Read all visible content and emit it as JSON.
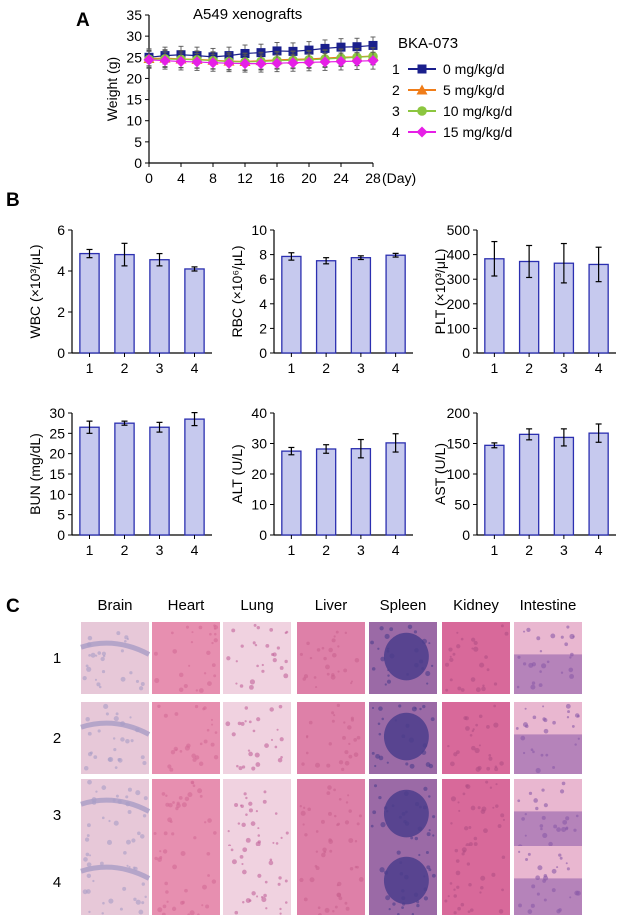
{
  "figure": {
    "panels": {
      "a": "A",
      "b": "B",
      "c": "C"
    }
  },
  "chart_data": [
    {
      "id": "weight",
      "type": "line",
      "title": "A549 xenografts",
      "xlabel": "(Day)",
      "ylabel": "Weight (g)",
      "xlim": [
        0,
        28
      ],
      "ylim": [
        0,
        35
      ],
      "xticks": [
        0,
        4,
        8,
        12,
        16,
        20,
        24,
        28
      ],
      "yticks": [
        0,
        5,
        10,
        15,
        20,
        25,
        30,
        35
      ],
      "x": [
        0,
        2,
        4,
        6,
        8,
        10,
        12,
        14,
        16,
        18,
        20,
        22,
        24,
        26,
        28
      ],
      "legend_title": "BKA-073",
      "legend_position": "right",
      "series": [
        {
          "index": "1",
          "name": "0 mg/kg/d",
          "color": "#1a1f8c",
          "marker": "square",
          "values": [
            25.0,
            25.4,
            25.6,
            25.4,
            25.1,
            25.4,
            25.9,
            26.1,
            26.5,
            26.4,
            26.7,
            27.1,
            27.4,
            27.5,
            27.8
          ],
          "errors": [
            2.0,
            2.0,
            2.0,
            2.0,
            2.0,
            2.0,
            2.0,
            2.0,
            2.0,
            2.0,
            2.0,
            2.0,
            2.0,
            2.0,
            2.0
          ]
        },
        {
          "index": "2",
          "name": "5 mg/kg/d",
          "color": "#f07d19",
          "marker": "triangle",
          "values": [
            24.7,
            24.8,
            24.6,
            24.5,
            24.3,
            24.1,
            24.0,
            24.2,
            24.4,
            24.5,
            24.6,
            24.8,
            25.0,
            25.1,
            25.3
          ],
          "errors": [
            2.0,
            2.0,
            2.0,
            2.0,
            2.0,
            2.0,
            2.0,
            2.0,
            2.0,
            2.0,
            2.0,
            2.0,
            2.0,
            2.0,
            2.0
          ]
        },
        {
          "index": "3",
          "name": "10 mg/kg/d",
          "color": "#8cc63f",
          "marker": "circle",
          "values": [
            24.5,
            24.6,
            24.5,
            24.4,
            24.2,
            24.0,
            23.9,
            24.0,
            24.2,
            24.3,
            24.4,
            24.6,
            24.8,
            25.0,
            25.2
          ],
          "errors": [
            2.0,
            2.0,
            2.0,
            2.0,
            2.0,
            2.0,
            2.0,
            2.0,
            2.0,
            2.0,
            2.0,
            2.0,
            2.0,
            2.0,
            2.0
          ]
        },
        {
          "index": "4",
          "name": "15 mg/kg/d",
          "color": "#e61fe6",
          "marker": "diamond",
          "values": [
            24.4,
            24.2,
            24.0,
            23.9,
            23.7,
            23.6,
            23.5,
            23.5,
            23.6,
            23.7,
            23.8,
            23.9,
            24.0,
            24.1,
            24.2
          ],
          "errors": [
            2.0,
            2.0,
            2.0,
            2.0,
            2.0,
            2.0,
            2.0,
            2.0,
            2.0,
            2.0,
            2.0,
            2.0,
            2.0,
            2.0,
            2.0
          ]
        }
      ]
    },
    {
      "id": "wbc",
      "type": "bar",
      "ylabel": "WBC (×10³/μL)",
      "categories": [
        "1",
        "2",
        "3",
        "4"
      ],
      "values": [
        4.85,
        4.8,
        4.55,
        4.1
      ],
      "errors": [
        0.2,
        0.55,
        0.3,
        0.1
      ],
      "ylim": [
        0,
        6
      ],
      "yticks": [
        0,
        2,
        4,
        6
      ]
    },
    {
      "id": "rbc",
      "type": "bar",
      "ylabel": "RBC (×10⁶/μL)",
      "categories": [
        "1",
        "2",
        "3",
        "4"
      ],
      "values": [
        7.85,
        7.5,
        7.75,
        7.95
      ],
      "errors": [
        0.3,
        0.25,
        0.15,
        0.15
      ],
      "ylim": [
        0,
        10
      ],
      "yticks": [
        0,
        2,
        4,
        6,
        8,
        10
      ]
    },
    {
      "id": "plt",
      "type": "bar",
      "ylabel": "PLT (×10³/μL)",
      "categories": [
        "1",
        "2",
        "3",
        "4"
      ],
      "values": [
        383,
        372,
        365,
        360
      ],
      "errors": [
        70,
        65,
        80,
        70
      ],
      "ylim": [
        0,
        500
      ],
      "yticks": [
        0,
        100,
        200,
        300,
        400,
        500
      ]
    },
    {
      "id": "bun",
      "type": "bar",
      "ylabel": "BUN (mg/dL)",
      "categories": [
        "1",
        "2",
        "3",
        "4"
      ],
      "values": [
        26.5,
        27.5,
        26.5,
        28.5
      ],
      "errors": [
        1.5,
        0.5,
        1.2,
        1.6
      ],
      "ylim": [
        0,
        30
      ],
      "yticks": [
        0,
        5,
        10,
        15,
        20,
        25,
        30
      ]
    },
    {
      "id": "alt",
      "type": "bar",
      "ylabel": "ALT (U/L)",
      "categories": [
        "1",
        "2",
        "3",
        "4"
      ],
      "values": [
        27.5,
        28.2,
        28.3,
        30.2
      ],
      "errors": [
        1.2,
        1.4,
        3.0,
        3.0
      ],
      "ylim": [
        0,
        40
      ],
      "yticks": [
        0,
        10,
        20,
        30,
        40
      ]
    },
    {
      "id": "ast",
      "type": "bar",
      "ylabel": "AST (U/L)",
      "categories": [
        "1",
        "2",
        "3",
        "4"
      ],
      "values": [
        147,
        165,
        160,
        167
      ],
      "errors": [
        4,
        9,
        14,
        15
      ],
      "ylim": [
        0,
        200
      ],
      "yticks": [
        0,
        50,
        100,
        150,
        200
      ]
    }
  ],
  "histology": {
    "columns": [
      "Brain",
      "Heart",
      "Lung",
      "Liver",
      "Spleen",
      "Kidney",
      "Intestine"
    ],
    "rows": [
      "1",
      "2",
      "3",
      "4"
    ],
    "tile_colors": [
      "#e7c8d8",
      "#e78fb0",
      "#f0d2e0",
      "#de80a8",
      "#9b6aa6",
      "#d8699a",
      "#e9b7d0"
    ],
    "tile_accents": [
      "#a99cc6",
      "#d46a96",
      "#c2629a",
      "#c9628f",
      "#4c3d8c",
      "#b24f85",
      "#8a5aa8"
    ]
  }
}
